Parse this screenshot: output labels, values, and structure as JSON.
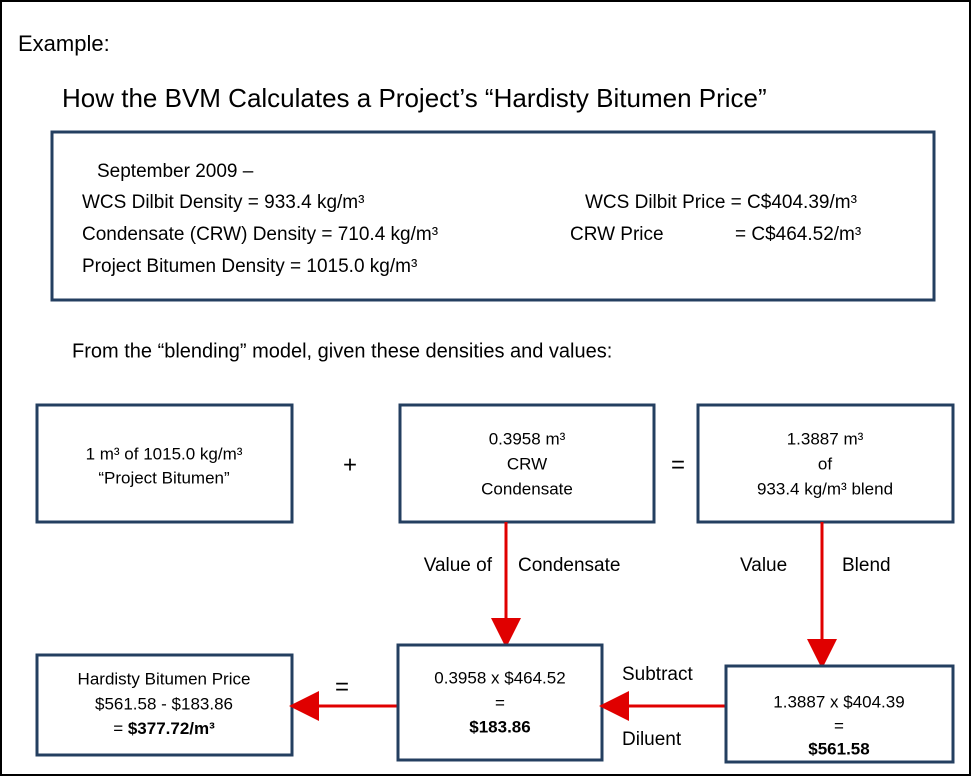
{
  "example_label": "Example:",
  "title": "How the BVM Calculates a Project’s “Hardisty Bitumen Price”",
  "inputs": {
    "date": "September 2009 –",
    "dilbit_density": "WCS Dilbit Density = 933.4 kg/m³",
    "dilbit_price": "WCS Dilbit Price = C$404.39/m³",
    "crw_density": "Condensate (CRW) Density = 710.4 kg/m³",
    "crw_price_label": "CRW Price",
    "crw_price_value": "= C$464.52/m³",
    "bitumen_density": "Project Bitumen Density = 1015.0 kg/m³"
  },
  "intro": "From the “blending” model, given these densities and values:",
  "blend_row": {
    "bitumen": [
      "1 m³ of 1015.0 kg/m³",
      "“Project Bitumen”"
    ],
    "plus": "+",
    "condensate": [
      "0.3958 m³",
      "CRW",
      "Condensate"
    ],
    "equals": "=",
    "blend": [
      "1.3887 m³",
      "of",
      "933.4 kg/m³ blend"
    ]
  },
  "arrows": {
    "condensate_left": "Value of",
    "condensate_right": "Condensate",
    "blend_left": "Value",
    "blend_right": "Blend",
    "subtract_top": "Subtract",
    "subtract_bottom": "Diluent",
    "equals": "="
  },
  "result_row": {
    "price": [
      "Hardisty Bitumen Price",
      "$561.58 - $183.86"
    ],
    "price_prefix": "= ",
    "price_result": "$377.72/m³",
    "diluent_value": [
      "0.3958 x $464.52",
      "=",
      "$183.86"
    ],
    "blend_value": [
      "1.3887 x $404.39",
      "=",
      "$561.58"
    ]
  }
}
